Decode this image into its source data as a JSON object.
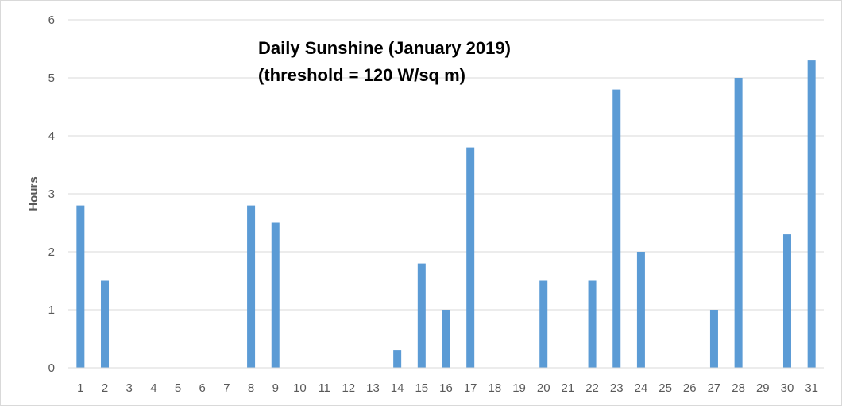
{
  "chart_data": {
    "type": "bar",
    "title": "Daily Sunshine (January 2019)",
    "subtitle": "(threshold = 120 W/sq m)",
    "xlabel": "",
    "ylabel": "Hours",
    "ylim": [
      0,
      6
    ],
    "yticks": [
      "0",
      "1",
      "2",
      "3",
      "4",
      "5",
      "6"
    ],
    "grid": true,
    "legend": "none",
    "bar_color": "#5b9bd5",
    "categories": [
      "1",
      "2",
      "3",
      "4",
      "5",
      "6",
      "7",
      "8",
      "9",
      "10",
      "11",
      "12",
      "13",
      "14",
      "15",
      "16",
      "17",
      "18",
      "19",
      "20",
      "21",
      "22",
      "23",
      "24",
      "25",
      "26",
      "27",
      "28",
      "29",
      "30",
      "31"
    ],
    "values": [
      2.8,
      1.5,
      0,
      0,
      0,
      0,
      0,
      2.8,
      2.5,
      0,
      0,
      0,
      0,
      0.3,
      1.8,
      1.0,
      3.8,
      0,
      0,
      1.5,
      0,
      1.5,
      4.8,
      2.0,
      0,
      0,
      1.0,
      5.0,
      0,
      2.3,
      5.3
    ]
  }
}
